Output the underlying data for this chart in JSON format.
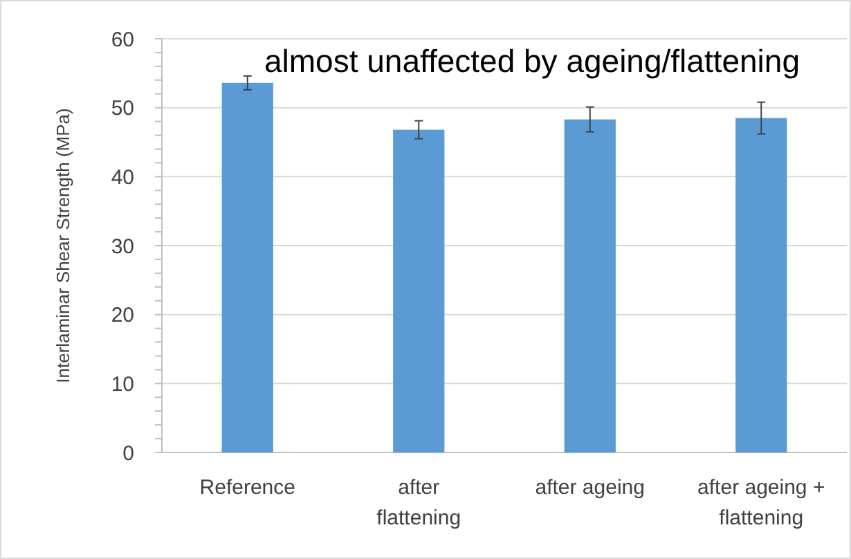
{
  "chart_data": {
    "type": "bar",
    "ylabel": "Interlaminar Shear Strength (MPa)",
    "annotations": [
      "almost unaffected by ageing/flattening"
    ],
    "categories": [
      "Reference",
      "after flattening",
      "after ageing",
      "after ageing + flattening"
    ],
    "values": [
      53.6,
      46.8,
      48.3,
      48.5
    ],
    "errors": [
      1,
      1.3,
      1.8,
      2.3
    ],
    "color": "#5b9bd5",
    "ylim": [
      0,
      60
    ],
    "yticks": [
      0,
      {
        "value": 2,
        "label": null
      },
      {
        "value": 4,
        "label": null
      },
      {
        "value": 6,
        "label": null
      },
      {
        "value": 8,
        "label": null
      },
      10,
      {
        "value": 12,
        "label": null
      },
      {
        "value": 14,
        "label": null
      },
      {
        "value": 16,
        "label": null
      },
      {
        "value": 18,
        "label": null
      },
      20,
      {
        "value": 22,
        "label": null
      },
      {
        "value": 24,
        "label": null
      },
      {
        "value": 26,
        "label": null
      },
      {
        "value": 28,
        "label": null
      },
      30,
      {
        "value": 32,
        "label": null
      },
      {
        "value": 34,
        "label": null
      },
      {
        "value": 36,
        "label": null
      },
      {
        "value": 38,
        "label": null
      },
      40,
      {
        "value": 42,
        "label": null
      },
      {
        "value": 44,
        "label": null
      },
      {
        "value": 46,
        "label": null
      },
      {
        "value": 48,
        "label": null
      },
      50,
      {
        "value": 52,
        "label": null
      },
      {
        "value": 54,
        "label": null
      },
      {
        "value": 56,
        "label": null
      },
      {
        "value": 58,
        "label": null
      },
      60
    ],
    "grid": "y"
  }
}
